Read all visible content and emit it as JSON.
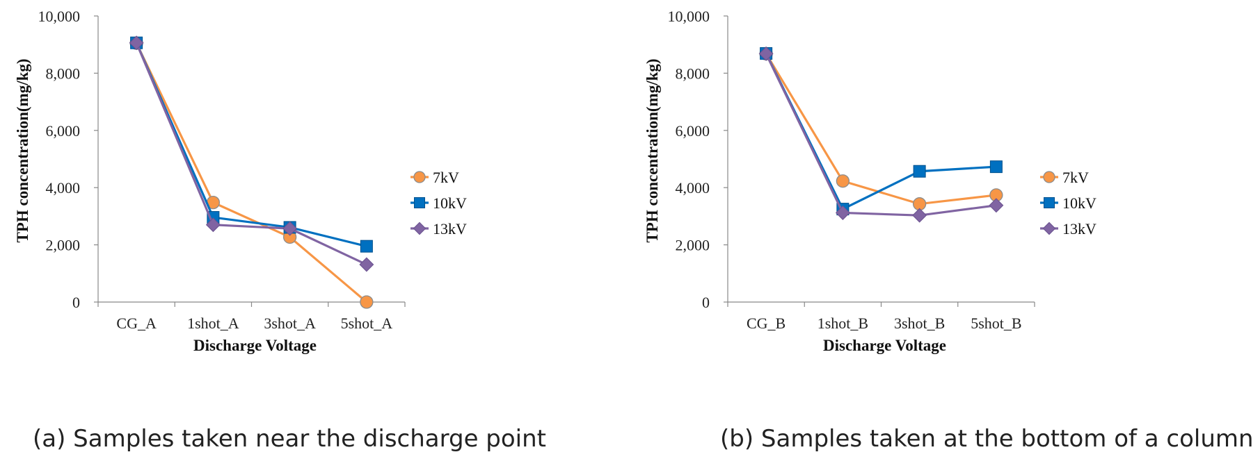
{
  "chart_data": [
    {
      "type": "line",
      "caption": "(a) Samples taken near the discharge point",
      "xlabel": "Discharge Voltage",
      "ylabel": "TPH concentration(mg/kg)",
      "categories": [
        "CG_A",
        "1shot_A",
        "3shot_A",
        "5shot_A"
      ],
      "ylim": [
        0,
        10000
      ],
      "yticks": [
        "0",
        "2,000",
        "4,000",
        "6,000",
        "8,000",
        "10,000"
      ],
      "legend_position": "right",
      "series": [
        {
          "name": "7kV",
          "marker": "circle",
          "color": "#F79646",
          "values": [
            9050,
            3480,
            2270,
            0
          ]
        },
        {
          "name": "10kV",
          "marker": "square",
          "color": "#0070C0",
          "values": [
            9060,
            2960,
            2610,
            1950
          ]
        },
        {
          "name": "13kV",
          "marker": "diamond",
          "color": "#8064A2",
          "values": [
            9060,
            2700,
            2570,
            1310
          ]
        }
      ]
    },
    {
      "type": "line",
      "caption": "(b) Samples taken at the bottom of a column",
      "xlabel": "Discharge Voltage",
      "ylabel": "TPH concentration(mg/kg)",
      "categories": [
        "CG_B",
        "1shot_B",
        "3shot_B",
        "5shot_B"
      ],
      "ylim": [
        0,
        10000
      ],
      "yticks": [
        "0",
        "2,000",
        "4,000",
        "6,000",
        "8,000",
        "10,000"
      ],
      "legend_position": "right",
      "series": [
        {
          "name": "7kV",
          "marker": "circle",
          "color": "#F79646",
          "values": [
            8680,
            4230,
            3430,
            3740
          ]
        },
        {
          "name": "10kV",
          "marker": "square",
          "color": "#0070C0",
          "values": [
            8690,
            3250,
            4570,
            4730
          ]
        },
        {
          "name": "13kV",
          "marker": "diamond",
          "color": "#8064A2",
          "values": [
            8680,
            3120,
            3030,
            3380
          ]
        }
      ]
    }
  ]
}
